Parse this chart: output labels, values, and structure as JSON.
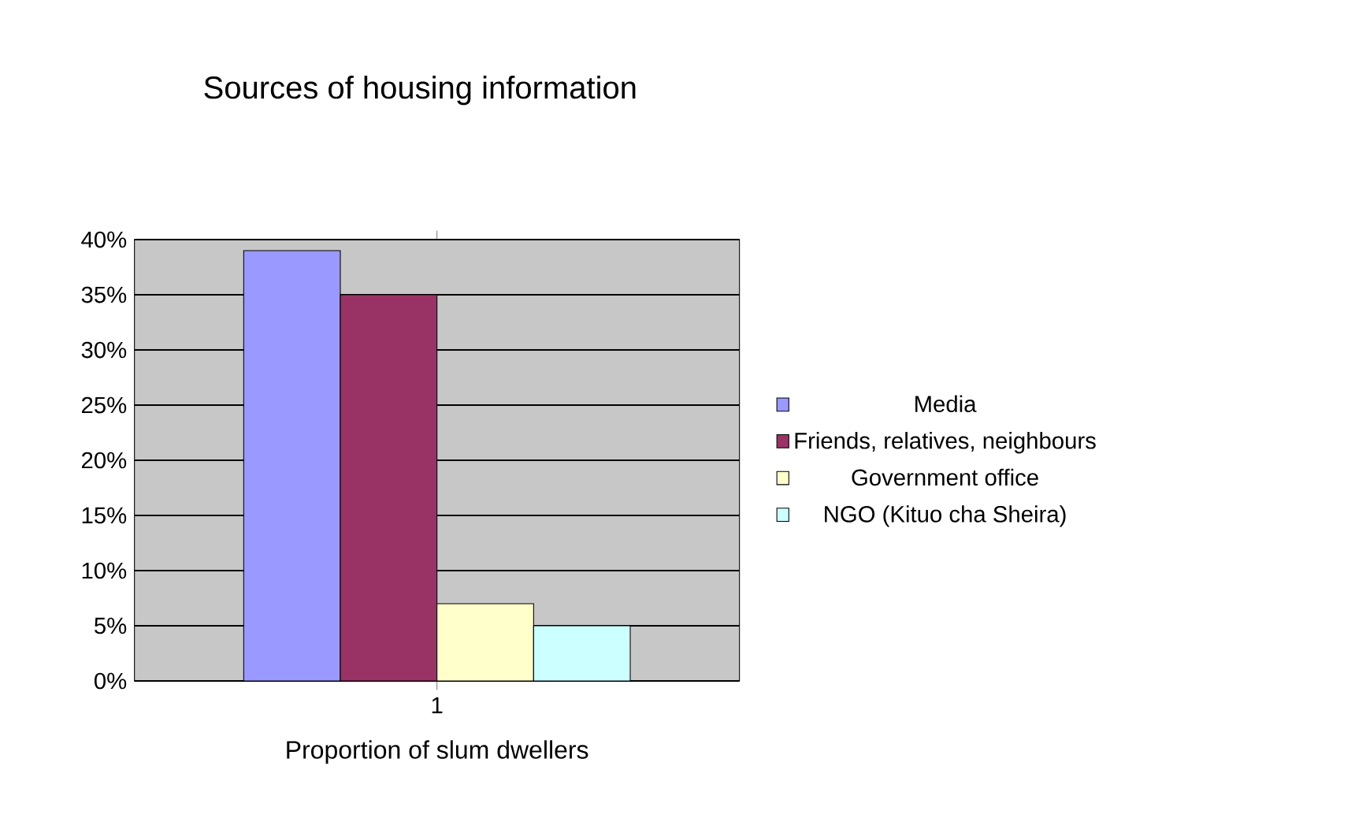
{
  "chart_data": {
    "type": "bar",
    "title": "Sources of housing information",
    "xlabel": "Proportion of slum dwellers",
    "categories": [
      "1"
    ],
    "series": [
      {
        "name": "Media",
        "color": "#9999ff",
        "values": [
          39
        ]
      },
      {
        "name": "Friends, relatives, neighbours",
        "color": "#993366",
        "values": [
          35
        ]
      },
      {
        "name": "Government office",
        "color": "#ffffcc",
        "values": [
          7
        ]
      },
      {
        "name": "NGO (Kituo cha Sheira)",
        "color": "#ccffff",
        "values": [
          5
        ]
      }
    ],
    "ylim": [
      0,
      40
    ],
    "yticks": [
      {
        "value": 0,
        "label": "0%"
      },
      {
        "value": 5,
        "label": "5%"
      },
      {
        "value": 10,
        "label": "10%"
      },
      {
        "value": 15,
        "label": "15%"
      },
      {
        "value": 20,
        "label": "20%"
      },
      {
        "value": 25,
        "label": "25%"
      },
      {
        "value": 30,
        "label": "30%"
      },
      {
        "value": 35,
        "label": "35%"
      },
      {
        "value": 40,
        "label": "40%"
      }
    ],
    "grid": "y",
    "legend": "right"
  }
}
